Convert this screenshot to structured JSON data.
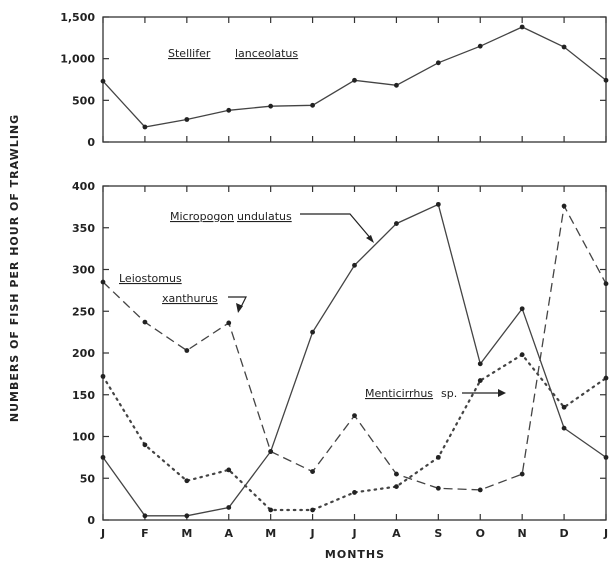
{
  "chart_data": [
    {
      "type": "line",
      "xlabel": "MONTHS",
      "ylabel": "NUMBERS OF FISH PER HOUR OF TRAWLING",
      "categories": [
        "J",
        "F",
        "M",
        "A",
        "M",
        "J",
        "J",
        "A",
        "S",
        "O",
        "N",
        "D",
        "J"
      ],
      "yticks": [
        "0",
        "500",
        "1,000",
        "1,500"
      ],
      "ylim": [
        0,
        1500
      ],
      "grid": false,
      "series": [
        {
          "name": "Stellifer lanceolatus",
          "style": "solid",
          "values": [
            730,
            180,
            270,
            380,
            430,
            440,
            740,
            680,
            950,
            1150,
            1380,
            1140,
            740
          ]
        }
      ]
    },
    {
      "type": "line",
      "xlabel": "MONTHS",
      "ylabel": "NUMBERS OF FISH PER HOUR OF TRAWLING",
      "categories": [
        "J",
        "F",
        "M",
        "A",
        "M",
        "J",
        "J",
        "A",
        "S",
        "O",
        "N",
        "D",
        "J"
      ],
      "yticks": [
        "0",
        "50",
        "100",
        "150",
        "200",
        "250",
        "300",
        "350",
        "400"
      ],
      "ylim": [
        0,
        400
      ],
      "grid": false,
      "series": [
        {
          "name": "Micropogon undulatus",
          "style": "solid",
          "values": [
            75,
            5,
            5,
            15,
            82,
            225,
            305,
            355,
            378,
            187,
            253,
            110,
            75
          ]
        },
        {
          "name": "Leiostomus xanthurus",
          "style": "dashed",
          "values": [
            285,
            237,
            203,
            236,
            82,
            58,
            125,
            55,
            38,
            36,
            55,
            376,
            283
          ]
        },
        {
          "name": "Menticirrhus sp.",
          "style": "dotted",
          "values": [
            172,
            90,
            47,
            60,
            12,
            12,
            33,
            40,
            75,
            167,
            198,
            135,
            170
          ]
        }
      ]
    }
  ],
  "labels": {
    "stellifer": [
      "Stellifer",
      "lanceolatus"
    ],
    "micropogon": [
      "Micropogon",
      "undulatus"
    ],
    "leiostomus": [
      "Leiostomus",
      "xanthurus"
    ],
    "menticirrhus": [
      "Menticirrhus",
      "sp."
    ]
  }
}
